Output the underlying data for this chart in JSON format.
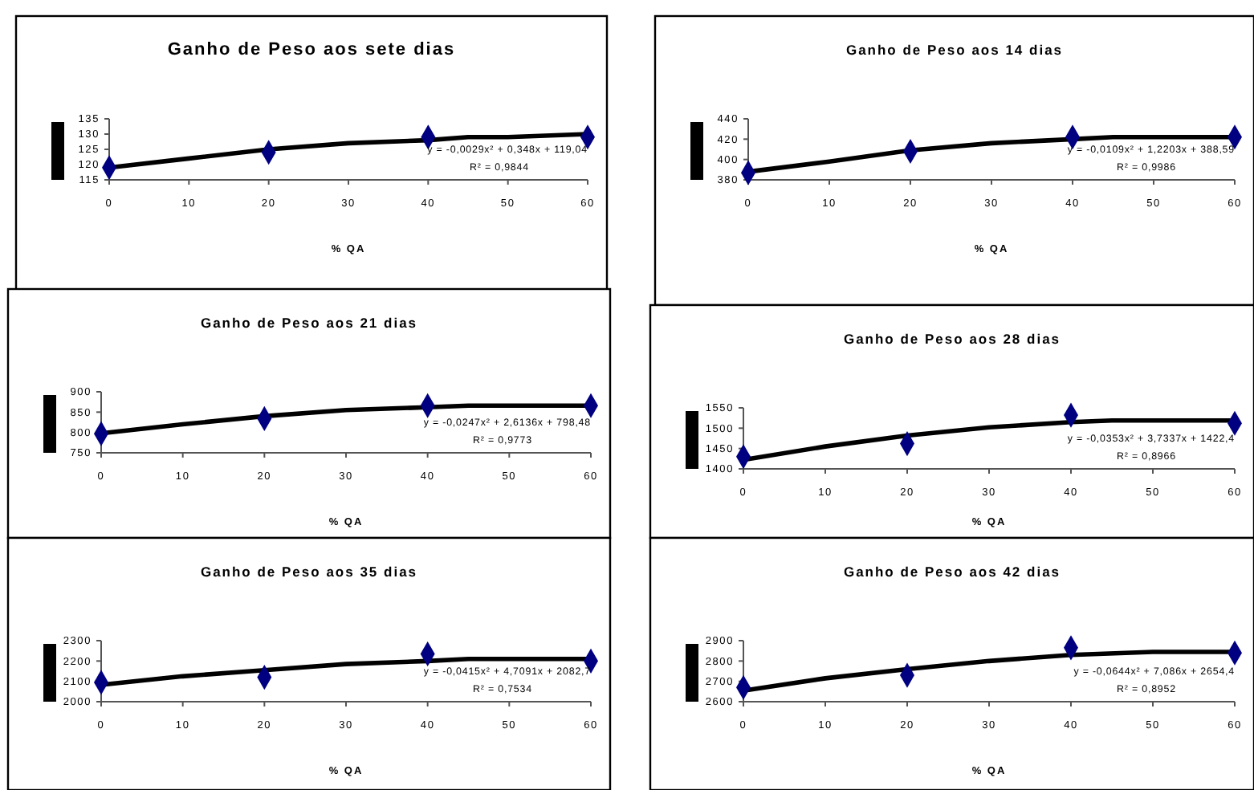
{
  "chart_data": [
    {
      "type": "scatter",
      "title": "Ganho de Peso aos sete dias",
      "xlabel": "% QA",
      "xlim": [
        0,
        60
      ],
      "xticks": [
        0,
        10,
        20,
        30,
        40,
        50,
        60
      ],
      "ylim": [
        115,
        135
      ],
      "yticks": [
        115,
        120,
        125,
        130,
        135
      ],
      "annotations": [
        "y = -0,0029x² + 0,348x + 119,04",
        "R² = 0,9844"
      ],
      "series": [
        {
          "marker": "diamond",
          "color": "#000080",
          "x": [
            0,
            20,
            40,
            60
          ],
          "values": [
            119,
            124,
            129,
            129
          ]
        },
        {
          "type": "line",
          "marker": "none",
          "color": "#000000",
          "x": [
            0,
            10,
            20,
            30,
            40,
            45,
            50,
            60
          ],
          "values": [
            119,
            122,
            125,
            127,
            128,
            129,
            129,
            130
          ]
        }
      ]
    },
    {
      "type": "scatter",
      "title": "Ganho de Peso aos 14 dias",
      "xlabel": "% QA",
      "xlim": [
        0,
        60
      ],
      "xticks": [
        0,
        10,
        20,
        30,
        40,
        50,
        60
      ],
      "ylim": [
        380,
        440
      ],
      "yticks": [
        380,
        400,
        420,
        440
      ],
      "annotations": [
        "y = -0,0109x² + 1,2203x + 388,59",
        "R² = 0,9986"
      ],
      "series": [
        {
          "marker": "diamond",
          "color": "#000080",
          "x": [
            0,
            20,
            40,
            60
          ],
          "values": [
            387,
            408,
            422,
            422
          ]
        },
        {
          "type": "line",
          "marker": "none",
          "color": "#000000",
          "x": [
            0,
            10,
            20,
            30,
            40,
            45,
            50,
            60
          ],
          "values": [
            388,
            398,
            409,
            416,
            420,
            422,
            422,
            422
          ]
        }
      ]
    },
    {
      "type": "scatter",
      "title": "Ganho de Peso aos 21 dias",
      "xlabel": "% QA",
      "xlim": [
        0,
        60
      ],
      "xticks": [
        0,
        10,
        20,
        30,
        40,
        50,
        60
      ],
      "ylim": [
        750,
        900
      ],
      "yticks": [
        750,
        800,
        850,
        900
      ],
      "annotations": [
        "y = -0,0247x² + 2,6136x + 798,48",
        "R² = 0,9773"
      ],
      "series": [
        {
          "marker": "diamond",
          "color": "#000080",
          "x": [
            0,
            20,
            40,
            60
          ],
          "values": [
            797,
            834,
            866,
            866
          ]
        },
        {
          "type": "line",
          "marker": "none",
          "color": "#000000",
          "x": [
            0,
            10,
            20,
            30,
            40,
            45,
            50,
            60
          ],
          "values": [
            798,
            820,
            840,
            855,
            862,
            866,
            866,
            866
          ]
        }
      ]
    },
    {
      "type": "scatter",
      "title": "Ganho de Peso aos 28 dias",
      "xlabel": "% QA",
      "xlim": [
        0,
        60
      ],
      "xticks": [
        0,
        10,
        20,
        30,
        40,
        50,
        60
      ],
      "ylim": [
        1400,
        1550
      ],
      "yticks": [
        1400,
        1450,
        1500,
        1550
      ],
      "annotations": [
        "y = -0,0353x² + 3,7337x + 1422,4",
        "R² = 0,8966"
      ],
      "series": [
        {
          "marker": "diamond",
          "color": "#000080",
          "x": [
            0,
            20,
            40,
            60
          ],
          "values": [
            1430,
            1462,
            1532,
            1512
          ]
        },
        {
          "type": "line",
          "marker": "none",
          "color": "#000000",
          "x": [
            0,
            10,
            20,
            30,
            40,
            45,
            50,
            60
          ],
          "values": [
            1422,
            1455,
            1482,
            1502,
            1515,
            1519,
            1519,
            1519
          ]
        }
      ]
    },
    {
      "type": "scatter",
      "title": "Ganho de Peso aos 35 dias",
      "xlabel": "% QA",
      "xlim": [
        0,
        60
      ],
      "xticks": [
        0,
        10,
        20,
        30,
        40,
        50,
        60
      ],
      "ylim": [
        2000,
        2300
      ],
      "yticks": [
        2000,
        2100,
        2200,
        2300
      ],
      "annotations": [
        "y = -0,0415x² + 4,7091x + 2082,7",
        "R² = 0,7534"
      ],
      "series": [
        {
          "marker": "diamond",
          "color": "#000080",
          "x": [
            0,
            20,
            40,
            60
          ],
          "values": [
            2095,
            2120,
            2235,
            2200
          ]
        },
        {
          "type": "line",
          "marker": "none",
          "color": "#000000",
          "x": [
            0,
            10,
            20,
            30,
            40,
            45,
            50,
            60
          ],
          "values": [
            2083,
            2125,
            2155,
            2185,
            2200,
            2210,
            2210,
            2210
          ]
        }
      ]
    },
    {
      "type": "scatter",
      "title": "Ganho de Peso aos 42 dias",
      "xlabel": "% QA",
      "xlim": [
        0,
        60
      ],
      "xticks": [
        0,
        10,
        20,
        30,
        40,
        50,
        60
      ],
      "ylim": [
        2600,
        2900
      ],
      "yticks": [
        2600,
        2700,
        2800,
        2900
      ],
      "annotations": [
        "y = -0,0644x² + 7,086x + 2654,4",
        "R² = 0,8952"
      ],
      "series": [
        {
          "marker": "diamond",
          "color": "#000080",
          "x": [
            0,
            20,
            40,
            60
          ],
          "values": [
            2670,
            2730,
            2865,
            2840
          ]
        },
        {
          "type": "line",
          "marker": "none",
          "color": "#000000",
          "x": [
            0,
            10,
            20,
            30,
            40,
            50,
            60
          ],
          "values": [
            2654,
            2715,
            2760,
            2800,
            2830,
            2845,
            2845
          ]
        }
      ]
    }
  ]
}
